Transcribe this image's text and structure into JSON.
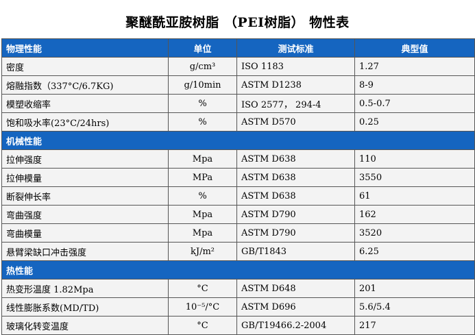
{
  "title": "聚醚酰亚胺树脂 （PEI树脂） 物性表",
  "header": {
    "property": "物理性能",
    "unit": "单位",
    "standard": "测试标准",
    "value": "典型值"
  },
  "sections": [
    {
      "label": null,
      "rows": [
        {
          "property": "密度",
          "unit": "g/cm³",
          "standard": "ISO 1183",
          "value": "1.27"
        },
        {
          "property": "熔融指数（337°C/6.7KG)",
          "unit": "g/10min",
          "standard": "ASTM D1238",
          "value": "8-9"
        },
        {
          "property": "模塑收缩率",
          "unit": "%",
          "standard": "ISO 2577， 294-4",
          "value": "0.5-0.7"
        },
        {
          "property": "饱和吸水率(23°C/24hrs)",
          "unit": "%",
          "standard": "ASTM D570",
          "value": "0.25"
        }
      ]
    },
    {
      "label": "机械性能",
      "rows": [
        {
          "property": "拉伸强度",
          "unit": "Mpa",
          "standard": "ASTM D638",
          "value": "110"
        },
        {
          "property": "拉伸模量",
          "unit": "MPa",
          "standard": "ASTM D638",
          "value": "3550"
        },
        {
          "property": "断裂伸长率",
          "unit": "%",
          "standard": "ASTM D638",
          "value": "61"
        },
        {
          "property": "弯曲强度",
          "unit": "Mpa",
          "standard": "ASTM D790",
          "value": "162"
        },
        {
          "property": "弯曲模量",
          "unit": "Mpa",
          "standard": "ASTM D790",
          "value": "3520"
        },
        {
          "property": "悬臂梁缺口冲击强度",
          "unit": "kJ/m²",
          "standard": "GB/T1843",
          "value": "6.25"
        }
      ]
    },
    {
      "label": "热性能",
      "rows": [
        {
          "property": "热变形温度 1.82Mpa",
          "unit": "°C",
          "standard": "ASTM D648",
          "value": "201"
        },
        {
          "property": "线性膨胀系数(MD/TD)",
          "unit": "10⁻⁵/°C",
          "standard": "ASTM D696",
          "value": "5.6/5.4"
        },
        {
          "property": "玻璃化转变温度",
          "unit": "°C",
          "standard": "GB/T19466.2-2004",
          "value": "217"
        }
      ]
    }
  ],
  "colors": {
    "header_bg": "#1565c0",
    "row_bg": "#f3f3f3",
    "header_text": "#ffffff"
  }
}
